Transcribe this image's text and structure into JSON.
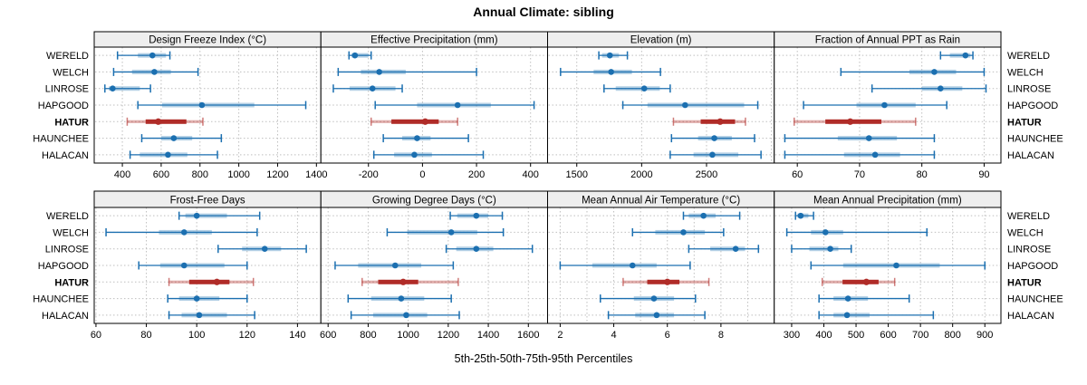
{
  "title": "Annual Climate: sibling",
  "caption": "5th-25th-50th-75th-95th Percentiles",
  "categories": [
    "WERELD",
    "WELCH",
    "LINROSE",
    "HAPGOOD",
    "HATUR",
    "HAUNCHEE",
    "HALACAN"
  ],
  "highlight_category": "HATUR",
  "percentile_labels": [
    "5th",
    "25th",
    "50th",
    "75th",
    "95th"
  ],
  "colors": {
    "series": "#1b6fb0",
    "series_band": "rgba(27,111,176,0.33)",
    "highlight": "#b02c28",
    "highlight_whisker": "rgba(178,44,40,0.38)",
    "highlight_cap": "rgba(178,44,40,0.62)",
    "grid": "#bfbfbf",
    "strip_bg": "#eeeeee",
    "border": "#000000",
    "text": "#000000"
  },
  "chart_data": [
    {
      "type": "interval",
      "title": "Design Freeze Index (°C)",
      "row": 0,
      "col": 0,
      "xlim": [
        255,
        1423
      ],
      "ticks": [
        400,
        600,
        800,
        1000,
        1200,
        1400
      ],
      "grid": [
        400,
        600,
        800,
        1000,
        1200,
        1400
      ],
      "values": {
        "WERELD": [
          375,
          480,
          555,
          625,
          645
        ],
        "WELCH": [
          355,
          450,
          565,
          650,
          790
        ],
        "LINROSE": [
          310,
          330,
          350,
          490,
          545
        ],
        "HAPGOOD": [
          480,
          605,
          810,
          1080,
          1345
        ],
        "HATUR": [
          425,
          520,
          585,
          730,
          815
        ],
        "HAUNCHEE": [
          500,
          600,
          665,
          760,
          910
        ],
        "HALACAN": [
          440,
          490,
          635,
          735,
          890
        ]
      }
    },
    {
      "type": "interval",
      "title": "Effective Precipitation (mm)",
      "row": 0,
      "col": 1,
      "xlim": [
        -376,
        463
      ],
      "ticks": [
        -200,
        0,
        200,
        400
      ],
      "grid": [
        -200,
        0,
        200,
        400
      ],
      "values": {
        "WERELD": [
          -272,
          -262,
          -250,
          -200,
          -190
        ],
        "WELCH": [
          -312,
          -228,
          -160,
          -62,
          200
        ],
        "LINROSE": [
          -330,
          -270,
          -185,
          -100,
          -75
        ],
        "HAPGOOD": [
          -175,
          -20,
          130,
          253,
          413
        ],
        "HATUR": [
          -190,
          -115,
          10,
          60,
          130
        ],
        "HAUNCHEE": [
          -145,
          -75,
          -20,
          30,
          170
        ],
        "HALACAN": [
          -180,
          -105,
          -30,
          35,
          225
        ]
      }
    },
    {
      "type": "interval",
      "title": "Elevation (m)",
      "row": 0,
      "col": 2,
      "xlim": [
        1275,
        3022
      ],
      "ticks": [
        1500,
        2000,
        2500
      ],
      "grid": [
        1500,
        2000,
        2500,
        3000
      ],
      "values": {
        "WERELD": [
          1670,
          1695,
          1755,
          1825,
          1890
        ],
        "WELCH": [
          1375,
          1630,
          1765,
          1925,
          2145
        ],
        "LINROSE": [
          1710,
          1800,
          2020,
          2140,
          2220
        ],
        "HAPGOOD": [
          1855,
          2045,
          2335,
          2790,
          2895
        ],
        "HATUR": [
          2245,
          2455,
          2605,
          2720,
          2800
        ],
        "HAUNCHEE": [
          2230,
          2435,
          2560,
          2695,
          2870
        ],
        "HALACAN": [
          2220,
          2400,
          2545,
          2745,
          2920
        ]
      }
    },
    {
      "type": "interval",
      "title": "Fraction of Annual PPT as Rain",
      "row": 0,
      "col": 3,
      "xlim": [
        56.3,
        92.7
      ],
      "ticks": [
        60,
        70,
        80,
        90
      ],
      "grid": [
        60,
        70,
        80,
        90
      ],
      "values": {
        "WERELD": [
          83,
          84.5,
          87,
          87.8,
          88.2
        ],
        "WELCH": [
          67,
          78,
          82,
          85.5,
          90
        ],
        "LINROSE": [
          72,
          80,
          83,
          86.5,
          90.3
        ],
        "HAPGOOD": [
          61,
          69.5,
          74,
          79,
          84
        ],
        "HATUR": [
          59.5,
          64.5,
          68.5,
          73.5,
          79
        ],
        "HAUNCHEE": [
          58,
          66.5,
          71.5,
          76,
          82
        ],
        "HALACAN": [
          58,
          67.5,
          72.5,
          76.5,
          82
        ]
      }
    },
    {
      "type": "interval",
      "title": "Frost-Free Days",
      "row": 1,
      "col": 0,
      "xlim": [
        59.3,
        149.3
      ],
      "ticks": [
        60,
        80,
        100,
        120,
        140
      ],
      "grid": [
        60,
        80,
        100,
        120,
        140
      ],
      "values": {
        "WERELD": [
          93,
          95.5,
          100,
          112,
          125
        ],
        "WELCH": [
          64,
          85,
          95,
          106,
          124
        ],
        "LINROSE": [
          108.5,
          118,
          127,
          133.5,
          143.5
        ],
        "HAPGOOD": [
          77,
          85.5,
          95,
          111,
          120
        ],
        "HATUR": [
          89,
          97,
          108,
          113,
          122.5
        ],
        "HAUNCHEE": [
          88.5,
          93,
          100,
          109,
          120
        ],
        "HALACAN": [
          89,
          94,
          101,
          112,
          123
        ]
      }
    },
    {
      "type": "interval",
      "title": "Growing Degree Days (°C)",
      "row": 1,
      "col": 1,
      "xlim": [
        564,
        1696
      ],
      "ticks": [
        600,
        800,
        1000,
        1200,
        1400,
        1600
      ],
      "grid": [
        600,
        800,
        1000,
        1200,
        1400,
        1600
      ],
      "values": {
        "WERELD": [
          1210,
          1245,
          1340,
          1400,
          1470
        ],
        "WELCH": [
          895,
          995,
          1215,
          1345,
          1475
        ],
        "LINROSE": [
          1190,
          1240,
          1340,
          1425,
          1620
        ],
        "HAPGOOD": [
          635,
          750,
          935,
          1065,
          1225
        ],
        "HATUR": [
          770,
          850,
          975,
          1050,
          1250
        ],
        "HAUNCHEE": [
          700,
          815,
          965,
          1080,
          1215
        ],
        "HALACAN": [
          715,
          825,
          990,
          1095,
          1255
        ]
      }
    },
    {
      "type": "interval",
      "title": "Mean Annual Air Temperature (°C)",
      "row": 1,
      "col": 2,
      "xlim": [
        1.53,
        9.99
      ],
      "ticks": [
        2,
        4,
        6,
        8
      ],
      "grid": [
        2,
        3,
        4,
        5,
        6,
        7,
        8,
        9
      ],
      "values": {
        "WERELD": [
          6.6,
          6.8,
          7.35,
          7.8,
          8.7
        ],
        "WELCH": [
          4.7,
          5.55,
          6.6,
          7.4,
          8.1
        ],
        "LINROSE": [
          6.8,
          7.6,
          8.55,
          8.9,
          9.4
        ],
        "HAPGOOD": [
          2.0,
          3.2,
          4.7,
          5.6,
          6.85
        ],
        "HATUR": [
          4.35,
          5.25,
          6.0,
          6.45,
          7.55
        ],
        "HAUNCHEE": [
          3.5,
          4.75,
          5.5,
          6.25,
          7.05
        ],
        "HALACAN": [
          3.8,
          4.8,
          5.6,
          6.25,
          7.4
        ]
      }
    },
    {
      "type": "interval",
      "title": "Mean Annual Precipitation (mm)",
      "row": 1,
      "col": 3,
      "xlim": [
        246,
        950
      ],
      "ticks": [
        300,
        400,
        500,
        600,
        700,
        800,
        900
      ],
      "grid": [
        300,
        400,
        500,
        600,
        700,
        800,
        900
      ],
      "values": {
        "WERELD": [
          312,
          318,
          328,
          352,
          368
        ],
        "WELCH": [
          285,
          360,
          405,
          460,
          720
        ],
        "LINROSE": [
          300,
          355,
          420,
          445,
          485
        ],
        "HAPGOOD": [
          360,
          460,
          625,
          760,
          900
        ],
        "HATUR": [
          395,
          458,
          532,
          570,
          620
        ],
        "HAUNCHEE": [
          385,
          430,
          475,
          537,
          665
        ],
        "HALACAN": [
          385,
          430,
          472,
          542,
          740
        ]
      }
    }
  ]
}
